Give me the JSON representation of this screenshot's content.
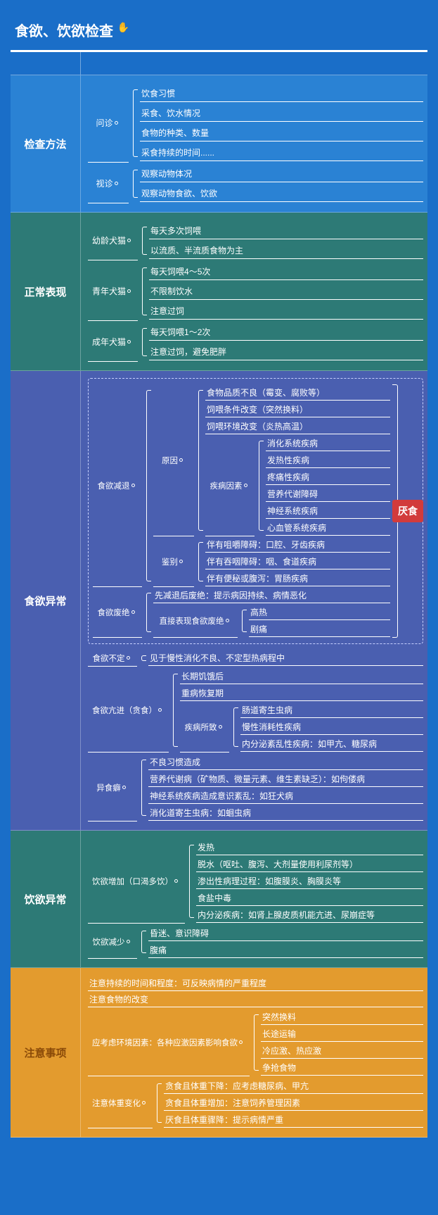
{
  "title": "食欲、饮欲检查",
  "title_emoji": "✋",
  "callout": "厌食",
  "colors": {
    "page_bg": "#1a6ec8",
    "sec_blue": "#2a82d4",
    "sec_teal": "#2d7a76",
    "sec_indigo": "#4a5fb0",
    "sec_orange": "#e39b2e",
    "callout_bg": "#d23b3b",
    "line": "#ffffff",
    "dashed_border": "#c7d0ff"
  },
  "typography": {
    "title_fontsize": 20,
    "section_label_fontsize": 15,
    "body_fontsize": 12
  },
  "sections": [
    {
      "id": "methods",
      "label": "检查方法",
      "bg": "bg-blue",
      "children": [
        {
          "label": "问诊",
          "leaves": [
            "饮食习惯",
            "采食、饮水情况",
            "食物的种类、数量",
            "采食持续的时间......"
          ]
        },
        {
          "label": "视诊",
          "leaves": [
            "观察动物体况",
            "观察动物食欲、饮欲"
          ]
        }
      ]
    },
    {
      "id": "normal",
      "label": "正常表现",
      "bg": "bg-teal",
      "children": [
        {
          "label": "幼龄犬猫",
          "leaves": [
            "每天多次饲喂",
            "以流质、半流质食物为主"
          ]
        },
        {
          "label": "青年犬猫",
          "leaves": [
            "每天饲喂4～5次",
            "不限制饮水",
            "注意过饲"
          ]
        },
        {
          "label": "成年犬猫",
          "leaves": [
            "每天饲喂1～2次",
            "注意过饲，避免肥胖"
          ]
        }
      ]
    }
  ],
  "appetite_abn": {
    "label": "食欲异常",
    "reduced": {
      "label": "食欲减退",
      "cause": {
        "label": "原因",
        "simple": [
          "食物品质不良（霉变、腐败等）",
          "饲喂条件改变（突然换料）",
          "饲喂环境改变（炎热高温）"
        ],
        "disease": {
          "label": "疾病因素",
          "leaves": [
            "消化系统疾病",
            "发热性疾病",
            "疼痛性疾病",
            "营养代谢障碍",
            "神经系统疾病",
            "心血管系统疾病"
          ]
        }
      },
      "diff": {
        "label": "鉴别",
        "leaves": [
          "伴有咀嚼障碍：口腔、牙齿疾病",
          "伴有吞咽障碍：咽、食道疾病",
          "伴有便秘或腹泻：胃肠疾病"
        ]
      }
    },
    "refuse": {
      "label": "食欲废绝",
      "first": "先减退后废绝：提示病因持续、病情恶化",
      "direct": {
        "label": "直接表现食欲废绝",
        "leaves": [
          "高热",
          "剧痛"
        ]
      }
    },
    "unstable": {
      "label": "食欲不定",
      "value": "见于慢性消化不良、不定型热病程中"
    },
    "hyper": {
      "label": "食欲亢进（贪食）",
      "simple": [
        "长期饥饿后",
        "重病恢复期"
      ],
      "disease": {
        "label": "疾病所致",
        "leaves": [
          "肠道寄生虫病",
          "慢性消耗性疾病",
          "内分泌紊乱性疾病：如甲亢、糖尿病"
        ]
      }
    },
    "pica": {
      "label": "异食癖",
      "leaves": [
        "不良习惯造成",
        "营养代谢病（矿物质、微量元素、维生素缺乏）：如佝偻病",
        "神经系统疾病造成意识紊乱：如狂犬病",
        "消化道寄生虫病：如蛔虫病"
      ]
    }
  },
  "drink_abn": {
    "label": "饮欲异常",
    "inc": {
      "label": "饮欲增加（口渴多饮）",
      "leaves": [
        "发热",
        "脱水（呕吐、腹泻、大剂量使用利尿剂等）",
        "渗出性病理过程：如腹膜炎、胸膜炎等",
        "食盐中毒",
        "内分泌疾病：如肾上腺皮质机能亢进、尿崩症等"
      ]
    },
    "dec": {
      "label": "饮欲减少",
      "leaves": [
        "昏迷、意识障碍",
        "腹痛"
      ]
    }
  },
  "notes": {
    "label": "注意事项",
    "simple": [
      "注意持续的时间和程度：可反映病情的严重程度",
      "注意食物的改变"
    ],
    "env": {
      "label": "应考虑环境因素：各种应激因素影响食欲",
      "leaves": [
        "突然换料",
        "长途运输",
        "冷应激、热应激",
        "争抢食物"
      ]
    },
    "weight": {
      "label": "注意体重变化",
      "leaves": [
        "贪食且体重下降：应考虑糖尿病、甲亢",
        "贪食且体重增加：注意饲养管理因素",
        "厌食且体重骤降：提示病情严重"
      ]
    }
  }
}
